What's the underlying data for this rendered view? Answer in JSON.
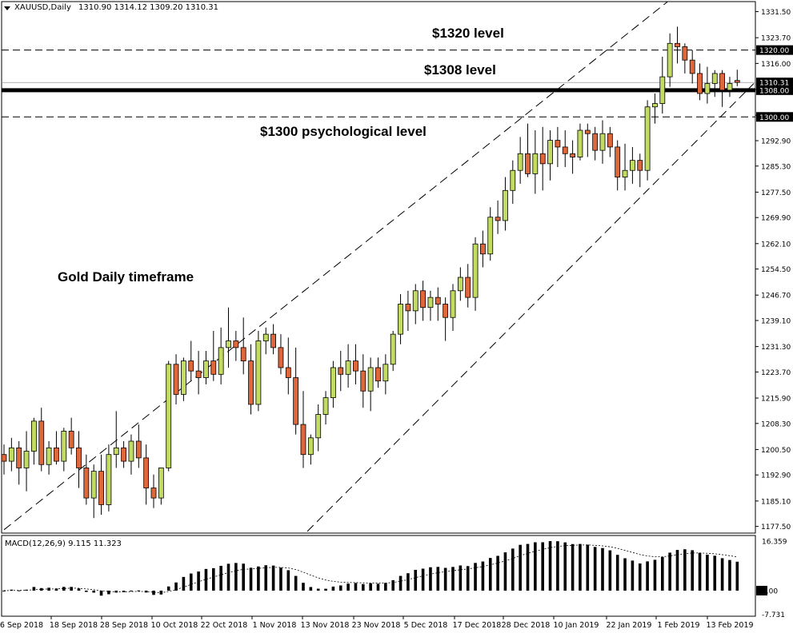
{
  "header": {
    "symbol": "XAUUSD,Daily",
    "ohlc": "1310.90 1314.12 1309.20 1310.31"
  },
  "annotations": {
    "level_1320": "$1320 level",
    "level_1308": "$1308 level",
    "level_1300": "$1300 psychological level",
    "timeframe": "Gold Daily timeframe"
  },
  "macd_label": "MACD(12,26,9) 9.115 11.323",
  "colors": {
    "bull_fill": "#c2dc62",
    "bear_fill": "#e0673a",
    "candle_outline": "#000000",
    "price_tag": "#000000"
  },
  "chart_data": {
    "type": "candlestick",
    "title": "XAUUSD,Daily",
    "ylim": [
      1175.5,
      1334.5
    ],
    "y_ticks": [
      "1331.50",
      "1323.70",
      "1316.00",
      "1308.20",
      "1300.50",
      "1292.90",
      "1285.30",
      "1277.50",
      "1269.90",
      "1262.10",
      "1254.50",
      "1246.70",
      "1239.10",
      "1231.30",
      "1223.70",
      "1215.90",
      "1208.30",
      "1200.50",
      "1192.90",
      "1185.10",
      "1177.50"
    ],
    "x_ticks": [
      "6 Sep 2018",
      "18 Sep 2018",
      "28 Sep 2018",
      "10 Oct 2018",
      "22 Oct 2018",
      "1 Nov 2018",
      "13 Nov 2018",
      "23 Nov 2018",
      "5 Dec 2018",
      "17 Dec 2018",
      "28 Dec 2018",
      "10 Jan 2019",
      "22 Jan 2019",
      "1 Feb 2019",
      "13 Feb 2019"
    ],
    "price_tags": [
      "1320.00",
      "1310.31",
      "1308.00",
      "1300.00"
    ],
    "horizontal_levels": [
      {
        "price": 1320.0,
        "style": "dashed"
      },
      {
        "price": 1308.0,
        "style": "thick"
      },
      {
        "price": 1300.0,
        "style": "dashed"
      },
      {
        "price": 1310.31,
        "style": "thin"
      }
    ],
    "channel_lines": [
      {
        "from": [
          "6 Sep 2018",
          1176.5
        ],
        "to": [
          "13 Feb 2019",
          1355.0
        ]
      },
      {
        "from": [
          "13 Nov 2018",
          1176.0
        ],
        "to": [
          "13 Feb 2019",
          1310.0
        ]
      }
    ],
    "ohlc": [
      [
        1199,
        1202,
        1193,
        1197
      ],
      [
        1197,
        1204,
        1194,
        1201
      ],
      [
        1201,
        1203,
        1190,
        1195
      ],
      [
        1195,
        1206,
        1188,
        1200
      ],
      [
        1200,
        1210,
        1196,
        1209
      ],
      [
        1209,
        1213,
        1194,
        1196
      ],
      [
        1196,
        1203,
        1193,
        1201
      ],
      [
        1201,
        1206,
        1196,
        1197
      ],
      [
        1197,
        1207,
        1194,
        1206
      ],
      [
        1206,
        1210,
        1199,
        1201
      ],
      [
        1201,
        1206,
        1189,
        1195
      ],
      [
        1195,
        1199,
        1184,
        1186
      ],
      [
        1186,
        1196,
        1180,
        1194
      ],
      [
        1194,
        1199,
        1181,
        1184
      ],
      [
        1184,
        1202,
        1182,
        1199
      ],
      [
        1199,
        1212,
        1195,
        1201
      ],
      [
        1201,
        1203,
        1195,
        1197
      ],
      [
        1197,
        1205,
        1193,
        1203
      ],
      [
        1203,
        1208,
        1195,
        1198
      ],
      [
        1198,
        1202,
        1184,
        1189
      ],
      [
        1189,
        1193,
        1183,
        1186
      ],
      [
        1186,
        1195,
        1184,
        1195
      ],
      [
        1195,
        1227,
        1194,
        1226
      ],
      [
        1226,
        1229,
        1214,
        1217
      ],
      [
        1217,
        1228,
        1215,
        1227
      ],
      [
        1227,
        1233,
        1221,
        1224
      ],
      [
        1224,
        1230,
        1217,
        1222
      ],
      [
        1222,
        1230,
        1220,
        1227
      ],
      [
        1227,
        1236,
        1221,
        1223
      ],
      [
        1223,
        1237,
        1220,
        1231
      ],
      [
        1231,
        1243,
        1225,
        1233
      ],
      [
        1233,
        1236,
        1227,
        1231
      ],
      [
        1231,
        1240,
        1223,
        1227
      ],
      [
        1227,
        1232,
        1211,
        1214
      ],
      [
        1214,
        1236,
        1212,
        1233
      ],
      [
        1233,
        1237,
        1229,
        1235
      ],
      [
        1235,
        1238,
        1229,
        1231
      ],
      [
        1231,
        1235,
        1223,
        1225
      ],
      [
        1225,
        1234,
        1217,
        1222
      ],
      [
        1222,
        1231,
        1205,
        1208
      ],
      [
        1208,
        1218,
        1195,
        1199
      ],
      [
        1199,
        1205,
        1196,
        1204
      ],
      [
        1204,
        1214,
        1200,
        1211
      ],
      [
        1211,
        1218,
        1208,
        1216
      ],
      [
        1216,
        1227,
        1213,
        1225
      ],
      [
        1225,
        1230,
        1218,
        1223
      ],
      [
        1223,
        1232,
        1219,
        1227
      ],
      [
        1227,
        1232,
        1220,
        1224
      ],
      [
        1224,
        1229,
        1213,
        1218
      ],
      [
        1218,
        1228,
        1212,
        1225
      ],
      [
        1225,
        1228,
        1219,
        1221
      ],
      [
        1221,
        1229,
        1217,
        1226
      ],
      [
        1226,
        1236,
        1224,
        1235
      ],
      [
        1235,
        1247,
        1232,
        1244
      ],
      [
        1244,
        1248,
        1236,
        1242
      ],
      [
        1242,
        1250,
        1238,
        1248
      ],
      [
        1248,
        1251,
        1239,
        1243
      ],
      [
        1243,
        1248,
        1239,
        1246
      ],
      [
        1246,
        1249,
        1239,
        1244
      ],
      [
        1244,
        1246,
        1233,
        1240
      ],
      [
        1240,
        1250,
        1236,
        1248
      ],
      [
        1248,
        1255,
        1245,
        1252
      ],
      [
        1252,
        1256,
        1243,
        1246
      ],
      [
        1246,
        1264,
        1242,
        1262
      ],
      [
        1262,
        1266,
        1255,
        1259
      ],
      [
        1259,
        1273,
        1257,
        1270
      ],
      [
        1270,
        1275,
        1265,
        1269
      ],
      [
        1269,
        1282,
        1266,
        1278
      ],
      [
        1278,
        1287,
        1274,
        1284
      ],
      [
        1284,
        1294,
        1280,
        1289
      ],
      [
        1289,
        1298,
        1282,
        1283
      ],
      [
        1283,
        1296,
        1277,
        1289
      ],
      [
        1289,
        1297,
        1278,
        1286
      ],
      [
        1286,
        1296,
        1281,
        1293
      ],
      [
        1293,
        1297,
        1285,
        1291
      ],
      [
        1291,
        1296,
        1285,
        1289
      ],
      [
        1289,
        1293,
        1283,
        1288
      ],
      [
        1288,
        1298,
        1287,
        1296
      ],
      [
        1296,
        1298,
        1288,
        1295
      ],
      [
        1295,
        1297,
        1287,
        1290
      ],
      [
        1290,
        1299,
        1286,
        1295
      ],
      [
        1295,
        1297,
        1288,
        1291
      ],
      [
        1291,
        1293,
        1278,
        1282
      ],
      [
        1282,
        1292,
        1278,
        1284
      ],
      [
        1284,
        1291,
        1280,
        1287
      ],
      [
        1287,
        1289,
        1279,
        1284
      ],
      [
        1284,
        1305,
        1281,
        1303
      ],
      [
        1303,
        1307,
        1298,
        1304
      ],
      [
        1304,
        1318,
        1301,
        1312
      ],
      [
        1312,
        1325,
        1309,
        1322
      ],
      [
        1322,
        1327,
        1316,
        1321
      ],
      [
        1321,
        1322,
        1313,
        1317
      ],
      [
        1317,
        1320,
        1310,
        1313
      ],
      [
        1313,
        1316,
        1305,
        1307
      ],
      [
        1307,
        1315,
        1304,
        1310
      ],
      [
        1310,
        1314,
        1306,
        1313
      ],
      [
        1313,
        1314,
        1303,
        1308
      ],
      [
        1308,
        1312,
        1306,
        1310
      ],
      [
        1310.9,
        1314.12,
        1309.2,
        1310.31
      ]
    ],
    "macd": {
      "label": "MACD(12,26,9)",
      "macd_value": 9.115,
      "signal_value": 11.323,
      "ylim": [
        -7.731,
        16.359
      ],
      "y_ticks": [
        "16.359",
        "0.00",
        "-7.731"
      ]
    }
  }
}
